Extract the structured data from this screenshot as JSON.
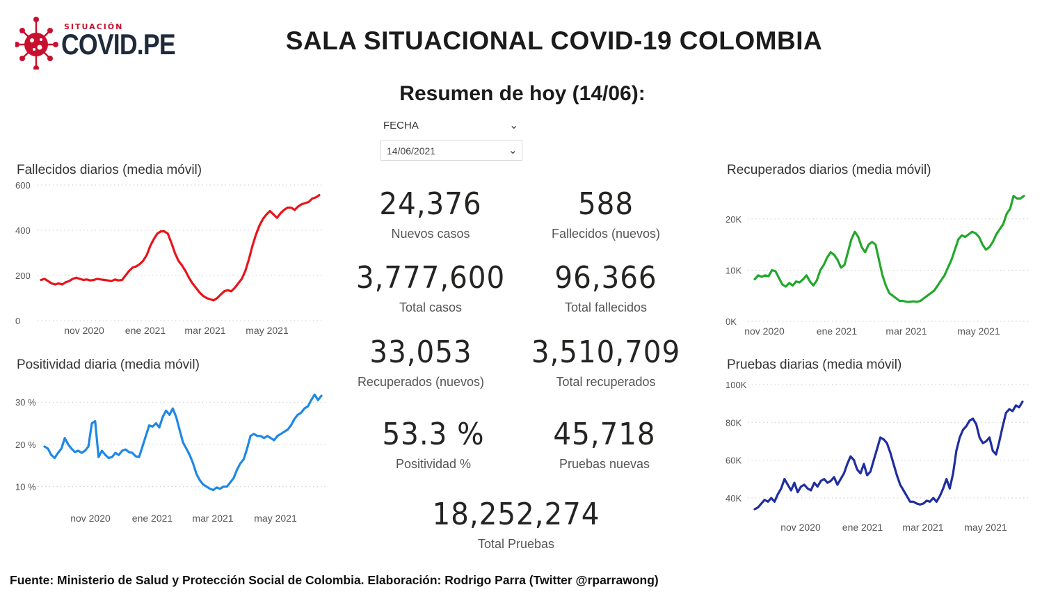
{
  "header": {
    "logo_small": "SITUACIÓN",
    "logo_big": "COVID.PE",
    "title": "SALA SITUACIONAL COVID-19 COLOMBIA",
    "summary": "Resumen de hoy (14/06):"
  },
  "filter": {
    "label": "FECHA",
    "value": "14/06/2021"
  },
  "kpis": {
    "nuevos_casos": {
      "value": "24,376",
      "label": "Nuevos casos"
    },
    "fallecidos_nuevos": {
      "value": "588",
      "label": "Fallecidos (nuevos)"
    },
    "total_casos": {
      "value": "3,777,600",
      "label": "Total casos"
    },
    "total_fallecidos": {
      "value": "96,366",
      "label": "Total fallecidos"
    },
    "recuperados_nuevos": {
      "value": "33,053",
      "label": "Recuperados (nuevos)"
    },
    "total_recuperados": {
      "value": "3,510,709",
      "label": "Total recuperados"
    },
    "positividad": {
      "value": "53.3 %",
      "label": "Positividad %"
    },
    "pruebas_nuevas": {
      "value": "45,718",
      "label": "Pruebas nuevas"
    },
    "total_pruebas": {
      "value": "18,252,274",
      "label": "Total Pruebas"
    }
  },
  "source": "Fuente: Ministerio de Salud y Protección Social de Colombia. Elaboración: Rodrigo Parra (Twitter @rparrawong)",
  "chart_data": [
    {
      "id": "fallecidos",
      "type": "line",
      "title": "Fallecidos diarios (media móvil)",
      "color": "#e8141a",
      "xlabels": [
        "nov 2020",
        "ene 2021",
        "mar 2021",
        "may 2021"
      ],
      "ytick_labels": [
        "0",
        "200",
        "400",
        "600"
      ],
      "yticks": [
        0,
        200,
        400,
        600
      ],
      "ylim": [
        0,
        600
      ],
      "grid": true,
      "values": [
        180,
        185,
        175,
        165,
        160,
        165,
        160,
        170,
        175,
        185,
        190,
        185,
        180,
        182,
        178,
        180,
        185,
        182,
        180,
        178,
        175,
        182,
        178,
        180,
        200,
        220,
        235,
        240,
        250,
        265,
        290,
        330,
        360,
        385,
        395,
        395,
        385,
        345,
        300,
        265,
        245,
        220,
        190,
        165,
        145,
        125,
        110,
        100,
        95,
        90,
        100,
        115,
        130,
        135,
        130,
        145,
        165,
        185,
        220,
        270,
        330,
        380,
        420,
        450,
        470,
        485,
        470,
        455,
        475,
        490,
        500,
        500,
        490,
        505,
        515,
        520,
        525,
        540,
        545,
        555
      ]
    },
    {
      "id": "positividad",
      "type": "line",
      "title": "Positividad diaria (media móvil)",
      "color": "#1e88e5",
      "xlabels": [
        "nov 2020",
        "ene 2021",
        "mar 2021",
        "may 2021"
      ],
      "ytick_labels": [
        "10 %",
        "20 %",
        "30 %"
      ],
      "yticks": [
        10,
        20,
        30
      ],
      "ylim": [
        5,
        33
      ],
      "grid": true,
      "values": [
        19.5,
        19,
        17.5,
        16.8,
        18,
        19,
        21.5,
        20,
        19,
        18.2,
        18.5,
        18,
        18.5,
        19.5,
        25,
        25.5,
        17,
        18.5,
        17.5,
        16.8,
        17,
        18,
        17.5,
        18.5,
        18.8,
        18.2,
        18,
        17.2,
        17,
        19.5,
        22,
        24.5,
        24.2,
        25,
        24,
        26.5,
        28,
        27,
        28.5,
        26.5,
        23.5,
        20.5,
        19,
        17.5,
        15.5,
        13,
        11.5,
        10.5,
        10,
        9.5,
        9.2,
        9.8,
        9.5,
        10,
        10,
        11,
        12,
        14,
        15.5,
        16.5,
        19,
        22,
        22.5,
        22,
        22,
        21.5,
        22,
        21.5,
        21,
        22,
        22.5,
        23,
        23.5,
        24.5,
        26,
        27,
        27.5,
        28.5,
        29,
        30.5,
        31.8,
        30.5,
        31.5
      ]
    },
    {
      "id": "recuperados",
      "type": "line",
      "title": "Recuperados diarios (media móvil)",
      "color": "#22a82b",
      "xlabels": [
        "nov 2020",
        "ene 2021",
        "mar 2021",
        "may 2021"
      ],
      "ytick_labels": [
        "0K",
        "10K",
        "20K"
      ],
      "yticks": [
        0,
        10000,
        20000
      ],
      "ylim": [
        0,
        25000
      ],
      "grid": true,
      "values": [
        8200,
        9000,
        8700,
        9000,
        8800,
        10000,
        9800,
        8500,
        7200,
        6800,
        7500,
        7000,
        7800,
        7600,
        8200,
        9000,
        7800,
        7000,
        8000,
        10000,
        11000,
        12500,
        13500,
        13000,
        12000,
        10500,
        11000,
        13500,
        16000,
        17500,
        16500,
        14500,
        13500,
        15000,
        15500,
        15000,
        12000,
        9000,
        7000,
        5500,
        5000,
        4500,
        4000,
        4000,
        3800,
        3800,
        3900,
        3800,
        4000,
        4500,
        5000,
        5500,
        6000,
        7000,
        8000,
        9000,
        10500,
        12000,
        14000,
        16000,
        16800,
        16500,
        17000,
        17500,
        17200,
        16500,
        15000,
        14000,
        14500,
        15500,
        17000,
        18000,
        19000,
        21000,
        22000,
        24500,
        24000,
        24000,
        24500
      ]
    },
    {
      "id": "pruebas",
      "type": "line",
      "title": "Pruebas diarias (media móvil)",
      "color": "#1f2e9e",
      "xlabels": [
        "nov 2020",
        "ene 2021",
        "mar 2021",
        "may 2021"
      ],
      "ytick_labels": [
        "40K",
        "60K",
        "80K",
        "100K"
      ],
      "yticks": [
        40000,
        60000,
        80000,
        100000
      ],
      "ylim": [
        30000,
        100000
      ],
      "grid": true,
      "values": [
        34000,
        35000,
        37000,
        39000,
        38000,
        40000,
        38000,
        42000,
        45000,
        50000,
        47000,
        44000,
        48000,
        43000,
        46000,
        47000,
        45000,
        44000,
        48000,
        46000,
        49000,
        50000,
        48000,
        49000,
        51000,
        47000,
        50000,
        53000,
        58000,
        62000,
        60000,
        55000,
        53000,
        58000,
        52000,
        54000,
        60000,
        66000,
        72000,
        71000,
        69000,
        64000,
        58000,
        52000,
        47000,
        44000,
        41000,
        38000,
        38000,
        37000,
        36500,
        37000,
        38500,
        38000,
        40000,
        38000,
        41000,
        45000,
        50000,
        45000,
        53000,
        65000,
        72000,
        76000,
        78000,
        81000,
        82000,
        79000,
        72000,
        69000,
        70000,
        72000,
        65000,
        63000,
        70000,
        78000,
        85000,
        87000,
        86000,
        89000,
        88000,
        91000
      ]
    }
  ]
}
